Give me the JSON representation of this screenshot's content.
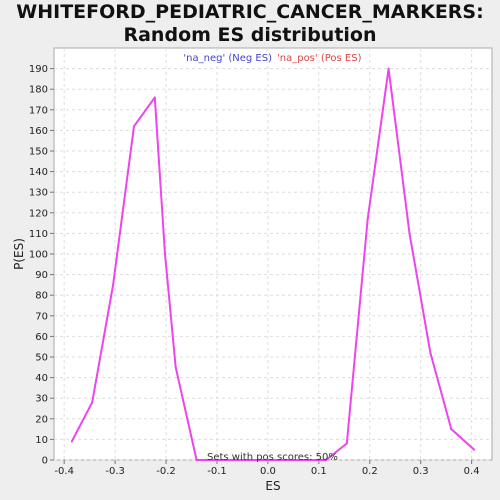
{
  "chart_data": {
    "type": "line",
    "title": "WHITEFORD_PEDIATRIC_CANCER_MARKERS: Random ES distribution",
    "xlabel": "ES",
    "ylabel": "P(ES)",
    "xlim": [
      -0.42,
      0.44
    ],
    "ylim": [
      0,
      200
    ],
    "xticks": [
      -0.4,
      -0.3,
      -0.2,
      -0.1,
      0.0,
      0.1,
      0.2,
      0.3,
      0.4
    ],
    "xtick_labels": [
      "-0.4",
      "-0.3",
      "-0.2",
      "-0.1",
      "0.0",
      "0.1",
      "0.2",
      "0.3",
      "0.4"
    ],
    "yticks": [
      0,
      10,
      20,
      30,
      40,
      50,
      60,
      70,
      80,
      90,
      100,
      110,
      120,
      130,
      140,
      150,
      160,
      170,
      180,
      190
    ],
    "grid": true,
    "legend": [
      {
        "label": "'na_neg' (Neg ES)",
        "color": "#4444cc"
      },
      {
        "label": "'na_pos' (Pos ES)",
        "color": "#dd4444"
      }
    ],
    "legend_position": "top-center",
    "series": [
      {
        "color": "#ee44ee",
        "x": [
          -0.385,
          -0.345,
          -0.304,
          -0.263,
          -0.222,
          -0.202,
          -0.181,
          -0.14,
          -0.099,
          -0.058,
          -0.017,
          0.024,
          0.065,
          0.114,
          0.155,
          0.196,
          0.237,
          0.278,
          0.319,
          0.36,
          0.405
        ],
        "y": [
          9,
          28,
          85,
          162,
          176,
          100,
          45,
          0,
          0,
          0,
          0,
          0,
          0,
          0,
          8,
          117,
          190,
          110,
          52,
          15,
          5
        ]
      }
    ],
    "annotation": "Sets with pos scores: 50%"
  }
}
